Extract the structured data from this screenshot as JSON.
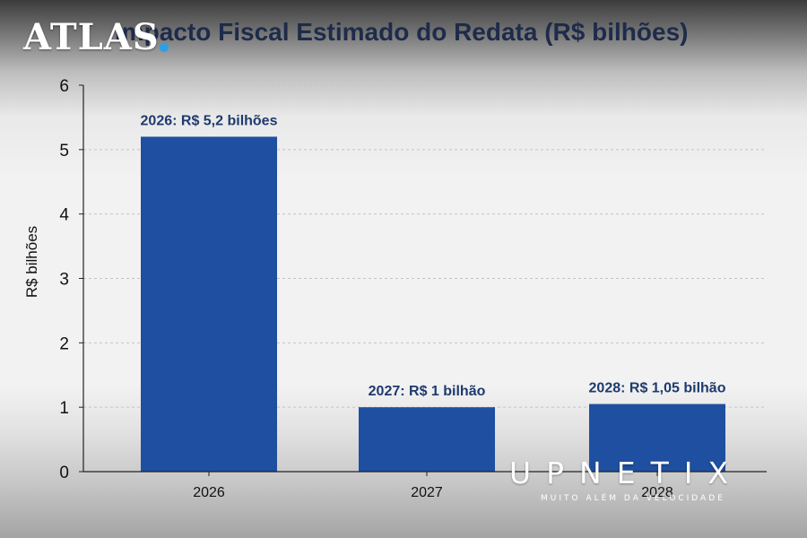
{
  "brand": {
    "logo_text": "ATLAS",
    "watermark": "UPNETIX",
    "watermark_tagline": "MUITO ALÉM DA VELOCIDADE"
  },
  "chart_data": {
    "type": "bar",
    "title": "Impacto Fiscal Estimado do Redata (R$ bilhões)",
    "ylabel": "R$ bilhões",
    "xlabel": "",
    "categories": [
      "2026",
      "2027",
      "2028"
    ],
    "values": [
      5.2,
      1,
      1.05
    ],
    "data_labels": [
      "2026: R$ 5,2 bilhões",
      "2027: R$ 1 bilhão",
      "2028: R$ 1,05 bilhão"
    ],
    "ylim": [
      0,
      6
    ],
    "yticks": [
      0,
      1,
      2,
      3,
      4,
      5,
      6
    ],
    "grid": true,
    "bar_color": "#1f4fa0",
    "label_color": "#1e3a6e"
  }
}
